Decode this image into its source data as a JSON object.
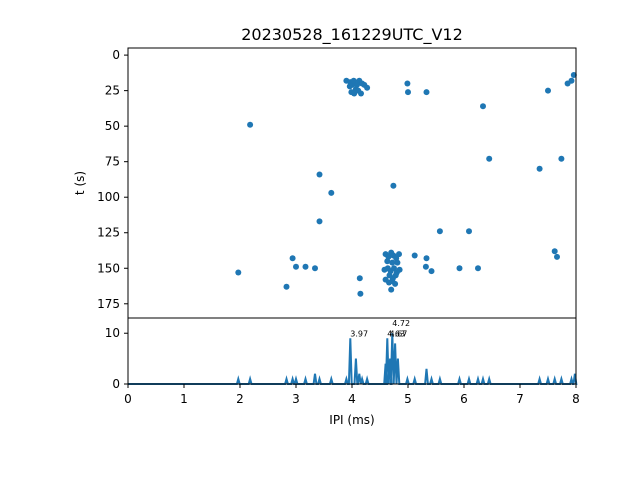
{
  "chart_data": [
    {
      "type": "scatter",
      "title": "20230528_161229UTC_V12",
      "xlabel": "",
      "ylabel": "t (s)",
      "xlim": [
        0,
        8
      ],
      "ylim": [
        185,
        -5
      ],
      "y_inverted": true,
      "yticks": [
        0,
        25,
        50,
        75,
        100,
        125,
        150,
        175
      ],
      "color": "#1f77b4",
      "grid": false,
      "points": [
        [
          2.18,
          49
        ],
        [
          1.97,
          153
        ],
        [
          2.83,
          163
        ],
        [
          2.94,
          143
        ],
        [
          3.0,
          149
        ],
        [
          3.17,
          149
        ],
        [
          3.34,
          150
        ],
        [
          3.42,
          84
        ],
        [
          3.42,
          117
        ],
        [
          3.63,
          97
        ],
        [
          3.9,
          18
        ],
        [
          3.97,
          19
        ],
        [
          4.0,
          21
        ],
        [
          4.03,
          18
        ],
        [
          4.07,
          24
        ],
        [
          3.99,
          26
        ],
        [
          4.04,
          27
        ],
        [
          4.11,
          25
        ],
        [
          4.13,
          18
        ],
        [
          4.18,
          20
        ],
        [
          4.16,
          27
        ],
        [
          4.22,
          21
        ],
        [
          3.96,
          22
        ],
        [
          4.09,
          21
        ],
        [
          4.27,
          23
        ],
        [
          4.14,
          157
        ],
        [
          4.15,
          168
        ],
        [
          4.74,
          92
        ],
        [
          4.99,
          20
        ],
        [
          5.0,
          26
        ],
        [
          5.33,
          26
        ],
        [
          4.6,
          140
        ],
        [
          4.65,
          142
        ],
        [
          4.7,
          139
        ],
        [
          4.74,
          141
        ],
        [
          4.79,
          143
        ],
        [
          4.84,
          140
        ],
        [
          4.63,
          145
        ],
        [
          4.72,
          146
        ],
        [
          4.81,
          146
        ],
        [
          4.58,
          151
        ],
        [
          4.64,
          150
        ],
        [
          4.69,
          152
        ],
        [
          4.75,
          150
        ],
        [
          4.8,
          153
        ],
        [
          4.85,
          151
        ],
        [
          4.6,
          158
        ],
        [
          4.66,
          160
        ],
        [
          4.72,
          159
        ],
        [
          4.77,
          161
        ],
        [
          4.7,
          165
        ],
        [
          4.73,
          157
        ],
        [
          4.67,
          155
        ],
        [
          4.78,
          155
        ],
        [
          5.12,
          141
        ],
        [
          5.33,
          143
        ],
        [
          5.32,
          149
        ],
        [
          5.42,
          152
        ],
        [
          5.57,
          124
        ],
        [
          5.92,
          150
        ],
        [
          6.09,
          124
        ],
        [
          6.25,
          150
        ],
        [
          6.34,
          36
        ],
        [
          6.45,
          73
        ],
        [
          7.35,
          80
        ],
        [
          7.5,
          25
        ],
        [
          7.62,
          138
        ],
        [
          7.66,
          142
        ],
        [
          7.74,
          73
        ],
        [
          7.85,
          20
        ],
        [
          7.92,
          18
        ],
        [
          7.96,
          14
        ]
      ]
    },
    {
      "type": "line",
      "xlabel": "IPI (ms)",
      "ylabel": "",
      "xlim": [
        0,
        8
      ],
      "ylim": [
        0,
        13
      ],
      "xticks": [
        0,
        1,
        2,
        3,
        4,
        5,
        6,
        7,
        8
      ],
      "yticks": [
        0,
        10
      ],
      "color": "#1f77b4",
      "peaks": [
        [
          1.97,
          1
        ],
        [
          2.18,
          1
        ],
        [
          2.83,
          1
        ],
        [
          2.94,
          1
        ],
        [
          3.0,
          1
        ],
        [
          3.17,
          1
        ],
        [
          3.34,
          2
        ],
        [
          3.42,
          1
        ],
        [
          3.63,
          1
        ],
        [
          3.9,
          1
        ],
        [
          3.97,
          9
        ],
        [
          4.07,
          5
        ],
        [
          4.13,
          2
        ],
        [
          4.18,
          1
        ],
        [
          4.27,
          1
        ],
        [
          4.6,
          4
        ],
        [
          4.63,
          9
        ],
        [
          4.68,
          5
        ],
        [
          4.72,
          10
        ],
        [
          4.77,
          8
        ],
        [
          4.82,
          5
        ],
        [
          4.99,
          1
        ],
        [
          5.12,
          1
        ],
        [
          5.33,
          3
        ],
        [
          5.42,
          1
        ],
        [
          5.57,
          1
        ],
        [
          5.92,
          1
        ],
        [
          6.09,
          1
        ],
        [
          6.25,
          1
        ],
        [
          6.34,
          1
        ],
        [
          6.45,
          1
        ],
        [
          7.35,
          1
        ],
        [
          7.5,
          1
        ],
        [
          7.62,
          1
        ],
        [
          7.74,
          1
        ],
        [
          7.92,
          1
        ],
        [
          7.98,
          2
        ]
      ],
      "annotations": [
        {
          "x": 3.97,
          "y": 9,
          "text": "3.97"
        },
        {
          "x": 4.72,
          "y": 11,
          "text": "4.72"
        },
        {
          "x": 4.63,
          "y": 9,
          "text": "4.63"
        },
        {
          "x": 4.67,
          "y": 9,
          "text": "4.67"
        }
      ]
    }
  ]
}
